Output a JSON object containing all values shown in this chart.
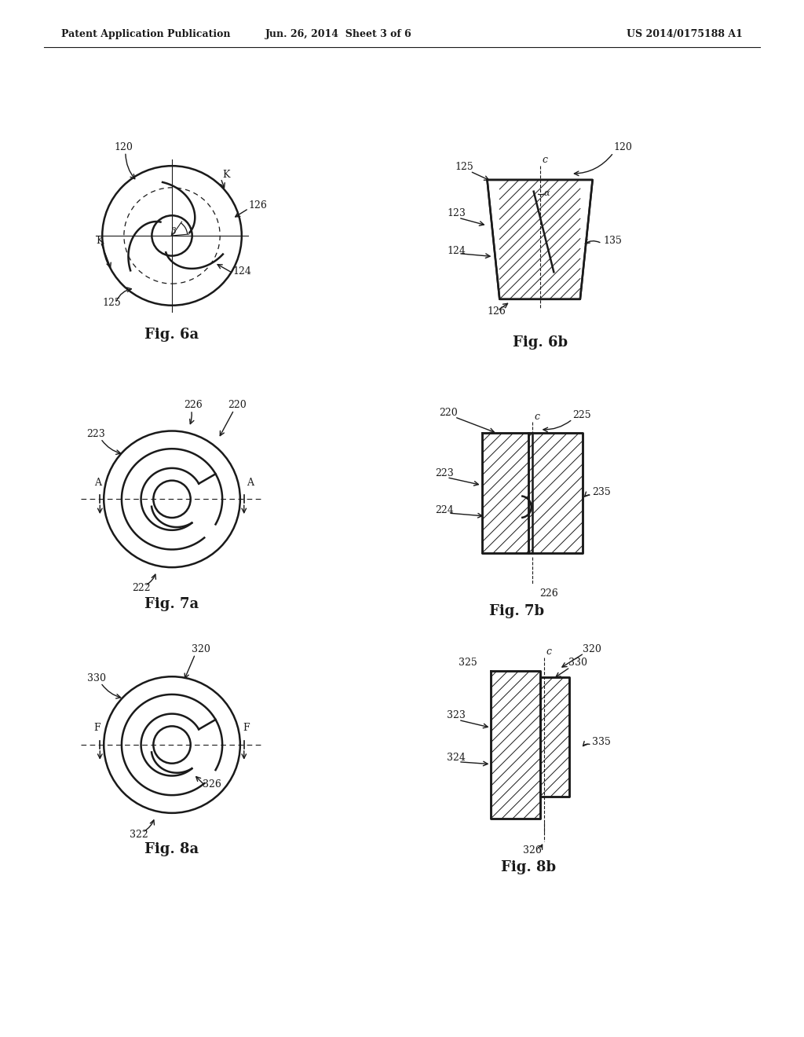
{
  "header_left": "Patent Application Publication",
  "header_mid": "Jun. 26, 2014  Sheet 3 of 6",
  "header_right": "US 2014/0175188 A1",
  "background": "#ffffff",
  "line_color": "#1a1a1a"
}
